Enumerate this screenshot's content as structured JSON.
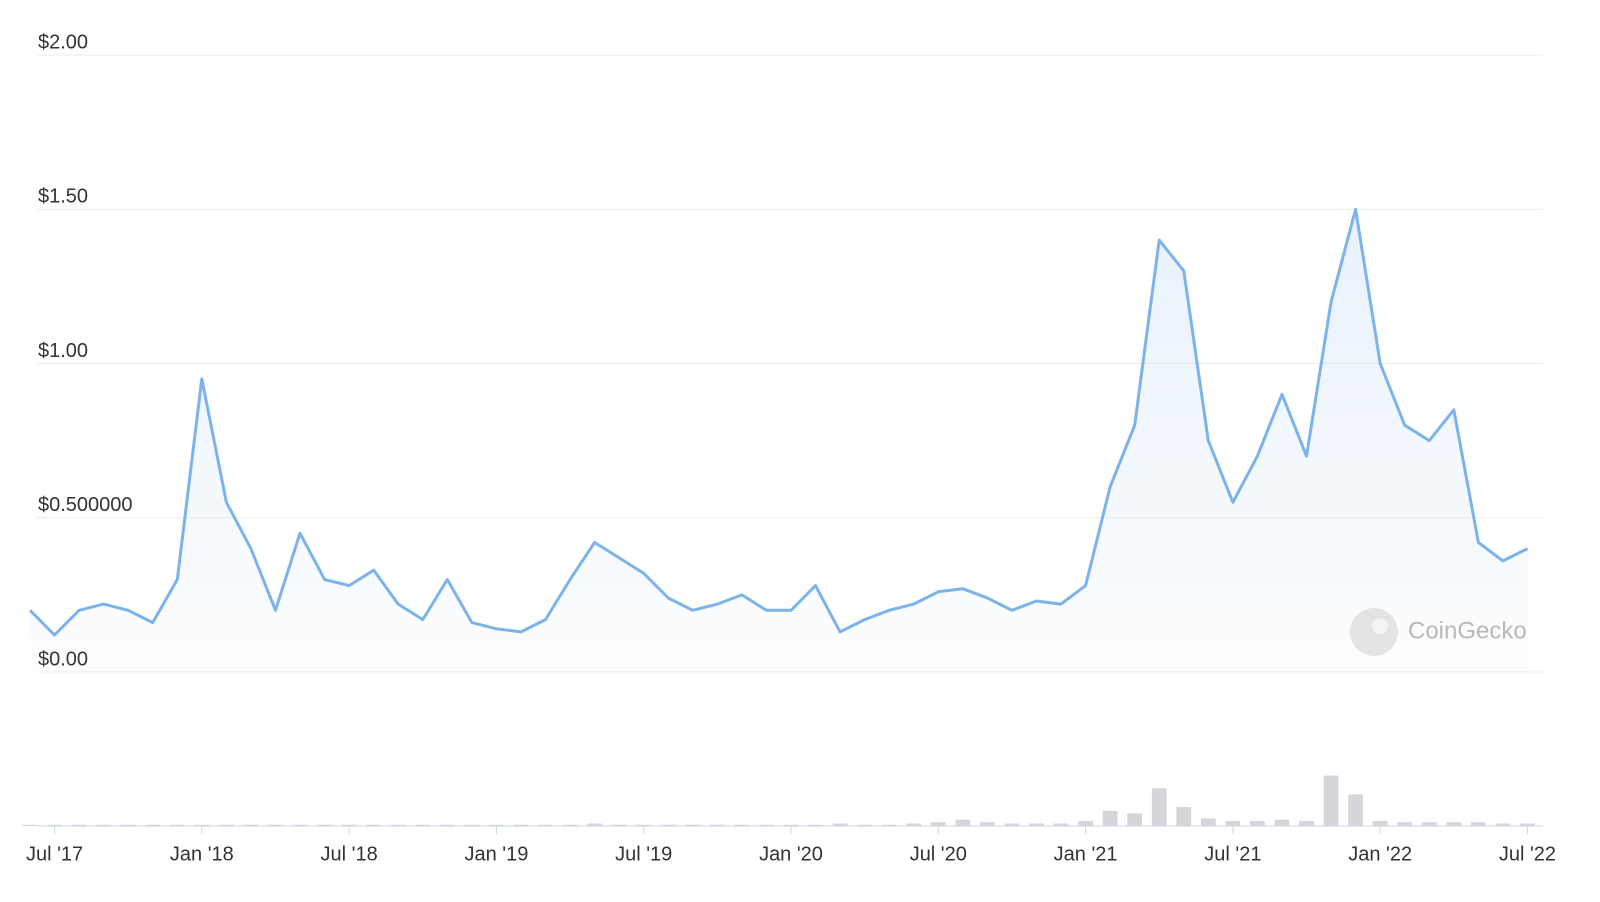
{
  "chart_data": {
    "type": "line",
    "x": [
      "2017-06",
      "2017-07",
      "2017-08",
      "2017-09",
      "2017-10",
      "2017-11",
      "2017-12",
      "2018-01",
      "2018-02",
      "2018-03",
      "2018-04",
      "2018-05",
      "2018-06",
      "2018-07",
      "2018-08",
      "2018-09",
      "2018-10",
      "2018-11",
      "2018-12",
      "2019-01",
      "2019-02",
      "2019-03",
      "2019-04",
      "2019-05",
      "2019-06",
      "2019-07",
      "2019-08",
      "2019-09",
      "2019-10",
      "2019-11",
      "2019-12",
      "2020-01",
      "2020-02",
      "2020-03",
      "2020-04",
      "2020-05",
      "2020-06",
      "2020-07",
      "2020-08",
      "2020-09",
      "2020-10",
      "2020-11",
      "2020-12",
      "2021-01",
      "2021-02",
      "2021-03",
      "2021-04",
      "2021-05",
      "2021-06",
      "2021-07",
      "2021-08",
      "2021-09",
      "2021-10",
      "2021-11",
      "2021-12",
      "2022-01",
      "2022-02",
      "2022-03",
      "2022-04",
      "2022-05",
      "2022-06",
      "2022-07"
    ],
    "series": [
      {
        "name": "Price",
        "color": "#7cb3ea",
        "values": [
          0.2,
          0.12,
          0.2,
          0.22,
          0.2,
          0.16,
          0.3,
          0.95,
          0.55,
          0.4,
          0.2,
          0.45,
          0.3,
          0.28,
          0.33,
          0.22,
          0.17,
          0.3,
          0.16,
          0.14,
          0.13,
          0.17,
          0.3,
          0.42,
          0.37,
          0.32,
          0.24,
          0.2,
          0.22,
          0.25,
          0.2,
          0.2,
          0.28,
          0.13,
          0.17,
          0.2,
          0.22,
          0.26,
          0.27,
          0.24,
          0.2,
          0.23,
          0.22,
          0.28,
          0.6,
          0.8,
          1.4,
          1.3,
          0.75,
          0.55,
          0.7,
          0.9,
          0.7,
          1.2,
          1.5,
          1.0,
          0.8,
          0.75,
          0.85,
          0.42,
          0.36,
          0.4
        ]
      },
      {
        "name": "Volume",
        "color": "#d4d6da",
        "axis": "y2",
        "values": [
          1,
          1,
          1,
          1,
          1,
          1,
          1,
          1,
          1,
          1,
          1,
          1,
          1,
          1,
          1,
          1,
          1,
          1,
          1,
          1,
          1,
          1,
          1,
          2,
          1,
          1,
          1,
          1,
          1,
          1,
          1,
          1,
          1,
          2,
          1,
          1,
          2,
          3,
          5,
          3,
          2,
          2,
          2,
          4,
          12,
          10,
          30,
          15,
          6,
          4,
          4,
          5,
          4,
          40,
          25,
          4,
          3,
          3,
          3,
          3,
          2,
          2
        ]
      }
    ],
    "xlim": [
      "2017-06",
      "2022-08"
    ],
    "xticks": [
      {
        "value": "2017-07",
        "label": "Jul '17"
      },
      {
        "value": "2018-01",
        "label": "Jan '18"
      },
      {
        "value": "2018-07",
        "label": "Jul '18"
      },
      {
        "value": "2019-01",
        "label": "Jan '19"
      },
      {
        "value": "2019-07",
        "label": "Jul '19"
      },
      {
        "value": "2020-01",
        "label": "Jan '20"
      },
      {
        "value": "2020-07",
        "label": "Jul '20"
      },
      {
        "value": "2021-01",
        "label": "Jan '21"
      },
      {
        "value": "2021-07",
        "label": "Jul '21"
      },
      {
        "value": "2022-01",
        "label": "Jan '22"
      },
      {
        "value": "2022-07",
        "label": "Jul '22"
      }
    ],
    "ylim": [
      0,
      2
    ],
    "yticks": [
      {
        "value": 0,
        "label": "$0.00"
      },
      {
        "value": 0.5,
        "label": "$0.500000"
      },
      {
        "value": 1,
        "label": "$1.00"
      },
      {
        "value": 1.5,
        "label": "$1.50"
      },
      {
        "value": 2,
        "label": "$2.00"
      }
    ],
    "y2lim": [
      0,
      100
    ],
    "grid": true,
    "watermark": "CoinGecko"
  }
}
